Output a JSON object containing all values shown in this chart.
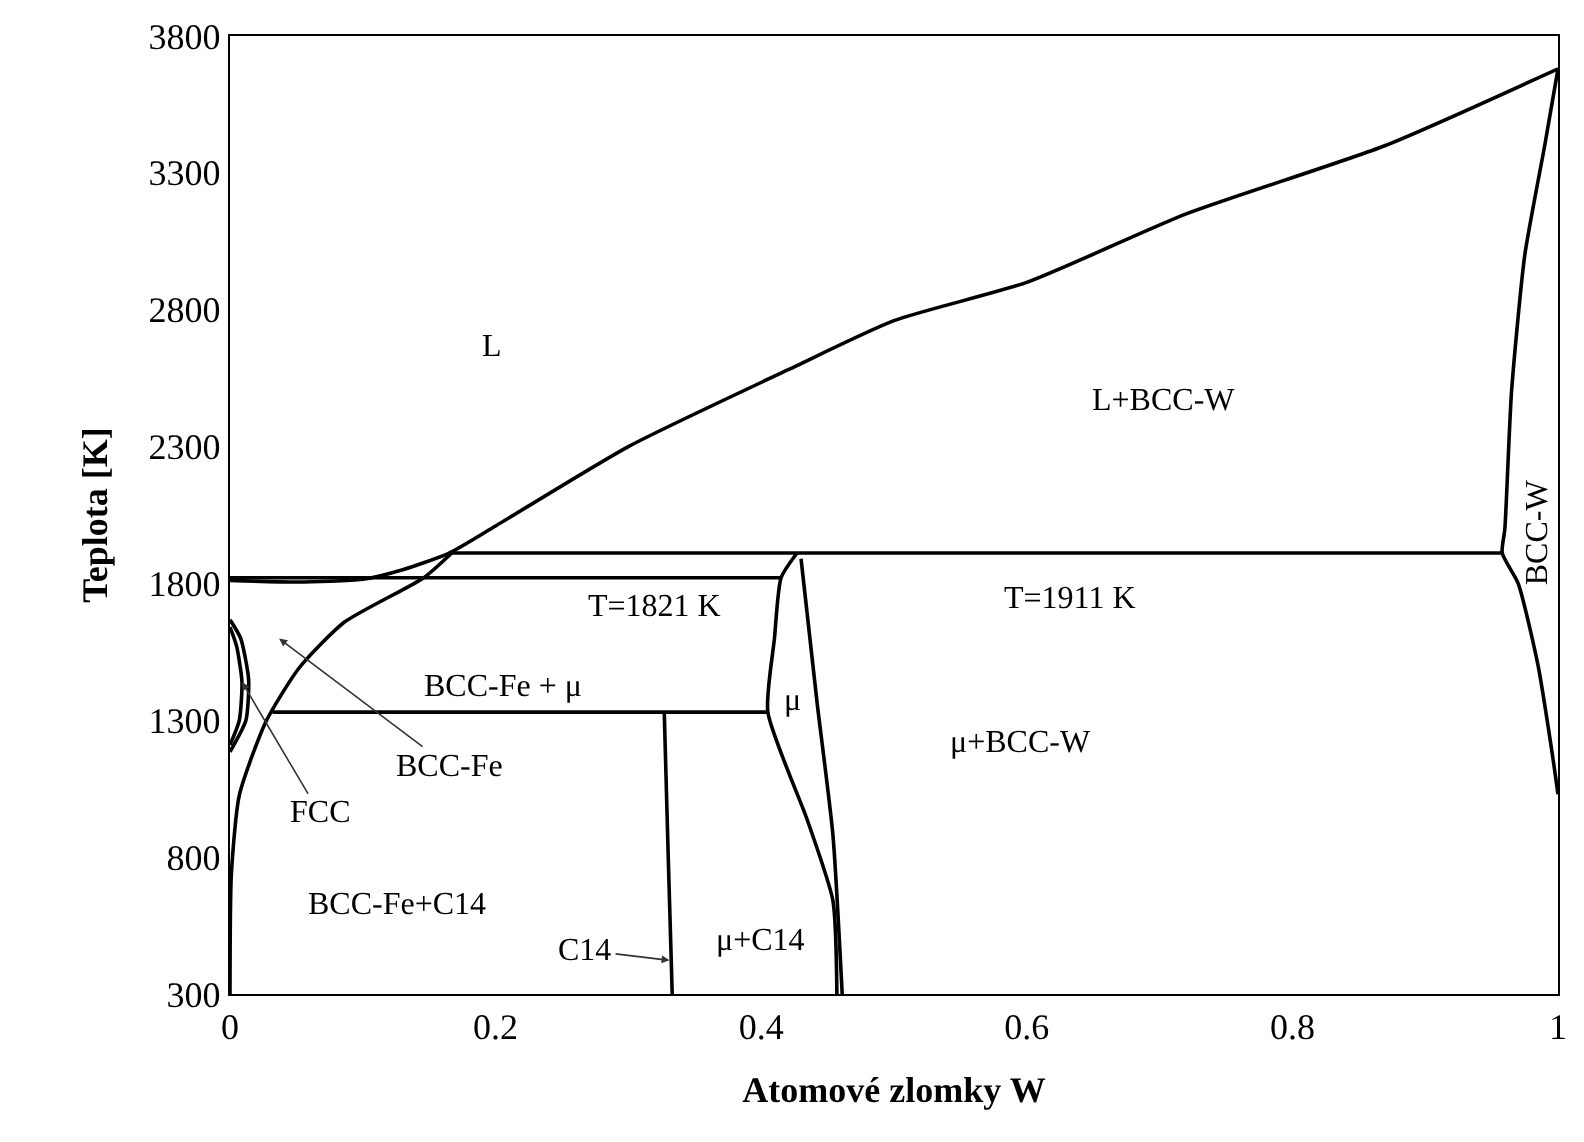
{
  "chart_data": {
    "type": "line",
    "xlabel": "Atomové zlomky W",
    "ylabel": "Teplota [K]",
    "xlim": [
      0,
      1
    ],
    "xticks": [
      0,
      0.2,
      0.4,
      0.6,
      0.8,
      1
    ],
    "ylim": [
      300,
      3800
    ],
    "yticks": [
      300,
      800,
      1300,
      1800,
      2300,
      2800,
      3300,
      3800
    ],
    "marker": "none",
    "line_style": "solid",
    "series": [
      {
        "color": "#000000",
        "x": [
          0,
          0.05,
          0.1,
          0.13,
          0.165,
          0.2,
          0.3,
          0.42,
          0.5,
          0.6,
          0.72,
          0.87,
          1
        ],
        "values": [
          1811,
          1805,
          1815,
          1850,
          1911,
          2010,
          2300,
          2580,
          2760,
          2900,
          3150,
          3400,
          3680
        ]
      },
      {
        "color": "#000000",
        "x": [
          1,
          0.99,
          0.975,
          0.965,
          0.96,
          0.958,
          0.97,
          0.985,
          0.995,
          1
        ],
        "values": [
          3680,
          3400,
          3000,
          2500,
          2000,
          1911,
          1800,
          1500,
          1200,
          1030
        ]
      },
      {
        "color": "#000000",
        "x": [
          0.165,
          0.958
        ],
        "values": [
          1911,
          1911
        ]
      },
      {
        "color": "#000000",
        "x": [
          0,
          0.415
        ],
        "values": [
          1821,
          1821
        ]
      },
      {
        "color": "#000000",
        "x": [
          0,
          0.001,
          0.007,
          0.027,
          0.052,
          0.086,
          0.146,
          0.167
        ],
        "values": [
          300,
          735,
          1026,
          1295,
          1491,
          1658,
          1821,
          1911
        ]
      },
      {
        "color": "#000000",
        "x": [
          0,
          0.008,
          0.014,
          0.012,
          0
        ],
        "values": [
          1667,
          1600,
          1450,
          1300,
          1185
        ]
      },
      {
        "color": "#000000",
        "x": [
          0,
          0.005,
          0.009,
          0.007,
          0
        ],
        "values": [
          1640,
          1570,
          1440,
          1300,
          1210
        ]
      },
      {
        "color": "#000000",
        "x": [
          0.032,
          0.405
        ],
        "values": [
          1330,
          1330
        ]
      },
      {
        "color": "#000000",
        "x": [
          0.327,
          0.33,
          0.333
        ],
        "values": [
          1330,
          800,
          300
        ]
      },
      {
        "color": "#000000",
        "x": [
          0.457,
          0.454,
          0.435,
          0.405,
          0.41,
          0.415,
          0.427
        ],
        "values": [
          300,
          641,
          932,
          1330,
          1600,
          1821,
          1911
        ]
      },
      {
        "color": "#000000",
        "x": [
          0.43,
          0.442,
          0.454,
          0.461
        ],
        "values": [
          1890,
          1368,
          881,
          300
        ]
      }
    ],
    "annotations": [
      "L",
      "L+BCC-W",
      "BCC-W",
      "T=1821 K",
      "T=1911 K",
      "BCC-Fe + μ",
      "μ",
      "μ+BCC-W",
      "BCC-Fe",
      {
        "text": "FCC",
        "x": 0.009,
        "y": 1440
      },
      "BCC-Fe+C14",
      {
        "text": "C14",
        "x": 0.331,
        "y": 423
      },
      "μ+C14"
    ]
  }
}
